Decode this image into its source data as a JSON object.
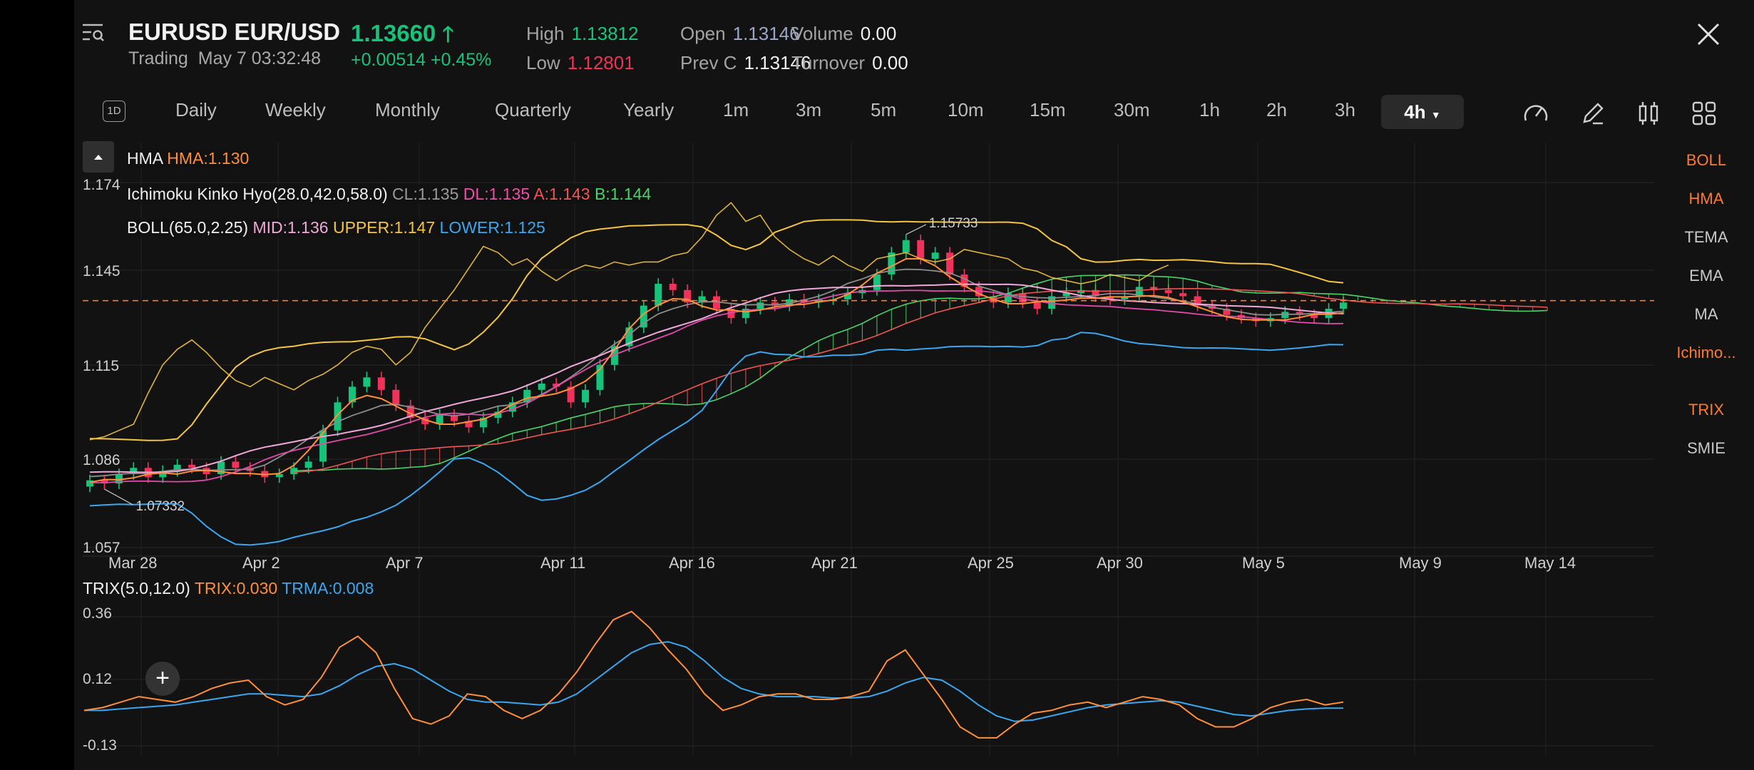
{
  "header": {
    "symbol": "EURUSD EUR/USD",
    "status": "Trading",
    "datetime": "May 7 03:32:48",
    "price": "1.13660",
    "change": "+0.00514",
    "change_pct": "+0.45%",
    "high_label": "High",
    "high_value": "1.13812",
    "low_label": "Low",
    "low_value": "1.12801",
    "open_label": "Open",
    "open_value": "1.13146",
    "prevc_label": "Prev C",
    "prevc_value": "1.13146",
    "volume_label": "Volume",
    "volume_value": "0.00",
    "turnover_label": "Turnover",
    "turnover_value": "0.00"
  },
  "toolbar": {
    "badge": "1D",
    "periods": [
      "Daily",
      "Weekly",
      "Monthly",
      "Quarterly",
      "Yearly",
      "1m",
      "3m",
      "5m",
      "10m",
      "15m",
      "30m",
      "1h",
      "2h",
      "3h"
    ],
    "active_period": "4h",
    "tools": [
      "speed-icon",
      "pencil-icon",
      "candle-icon",
      "grid-icon"
    ]
  },
  "indicators": {
    "hma_name": "HMA",
    "hma_value": "HMA:1.130",
    "ichimoku_name": "Ichimoku Kinko Hyo(28.0,42.0,58.0)",
    "ichimoku_cl": "CL:1.135",
    "ichimoku_dl": "DL:1.135",
    "ichimoku_a": "A:1.143",
    "ichimoku_b": "B:1.144",
    "boll_name": "BOLL(65.0,2.25)",
    "boll_mid": "MID:1.136",
    "boll_upper": "UPPER:1.147",
    "boll_lower": "LOWER:1.125",
    "trix_name": "TRIX(5.0,12.0)",
    "trix_value": "TRIX:0.030",
    "trma_value": "TRMA:0.008"
  },
  "right_menu": [
    {
      "label": "BOLL",
      "active": true
    },
    {
      "label": "HMA",
      "active": true
    },
    {
      "label": "TEMA",
      "active": false
    },
    {
      "label": "EMA",
      "active": false
    },
    {
      "label": "MA",
      "active": false
    },
    {
      "label": "Ichimo...",
      "active": true
    },
    {
      "label": "TRIX",
      "active": true
    },
    {
      "label": "SMIE",
      "active": false
    }
  ],
  "colors": {
    "up": "#17c37b",
    "down": "#f0325a",
    "accent": "#ff7a2f",
    "boll_upper": "#f4c542",
    "boll_mid": "#f0a8d8",
    "boll_lower": "#3aa7f0",
    "cloud_up": "#49d46a",
    "cloud_down": "#f05454",
    "trix": "#ff8f3a",
    "trma": "#3aa7f0"
  },
  "chart_data": [
    {
      "type": "candlestick",
      "title": "EURUSD 4h",
      "y_ticks": [
        "1.174",
        "1.145",
        "1.115",
        "1.086",
        "1.057"
      ],
      "x_ticks": [
        "Mar 28",
        "Apr 2",
        "Apr 7",
        "Apr 11",
        "Apr 16",
        "Apr 21",
        "Apr 25",
        "Apr 30",
        "May 5",
        "May 9",
        "May 14"
      ],
      "ylim": [
        1.057,
        1.174
      ],
      "annotations": [
        "1.15733",
        "1.07332"
      ],
      "last_price": 1.1366,
      "close_series": [
        1.079,
        1.078,
        1.081,
        1.083,
        1.08,
        1.082,
        1.084,
        1.083,
        1.081,
        1.085,
        1.083,
        1.082,
        1.08,
        1.081,
        1.083,
        1.085,
        1.095,
        1.104,
        1.109,
        1.112,
        1.108,
        1.103,
        1.099,
        1.097,
        1.1,
        1.098,
        1.096,
        1.099,
        1.101,
        1.104,
        1.108,
        1.11,
        1.109,
        1.104,
        1.108,
        1.116,
        1.122,
        1.128,
        1.135,
        1.142,
        1.14,
        1.136,
        1.138,
        1.134,
        1.131,
        1.134,
        1.136,
        1.135,
        1.137,
        1.136,
        1.137,
        1.137,
        1.139,
        1.14,
        1.145,
        1.152,
        1.156,
        1.15,
        1.152,
        1.145,
        1.141,
        1.138,
        1.136,
        1.139,
        1.136,
        1.134,
        1.138,
        1.139,
        1.14,
        1.138,
        1.137,
        1.138,
        1.141,
        1.14,
        1.139,
        1.138,
        1.135,
        1.134,
        1.132,
        1.131,
        1.13,
        1.131,
        1.133,
        1.132,
        1.131,
        1.134,
        1.136
      ]
    },
    {
      "type": "line",
      "title": "TRIX(5.0,12.0)",
      "y_ticks": [
        "0.36",
        "0.12",
        "-0.13"
      ],
      "ylim": [
        -0.16,
        0.38
      ],
      "series": [
        {
          "name": "TRIX",
          "values": [
            0.0,
            0.01,
            0.03,
            0.05,
            0.04,
            0.03,
            0.05,
            0.08,
            0.1,
            0.11,
            0.05,
            0.02,
            0.04,
            0.12,
            0.23,
            0.27,
            0.21,
            0.08,
            -0.03,
            -0.05,
            -0.02,
            0.06,
            0.05,
            0.0,
            -0.03,
            0.0,
            0.06,
            0.14,
            0.24,
            0.33,
            0.36,
            0.3,
            0.22,
            0.15,
            0.06,
            0.0,
            0.02,
            0.05,
            0.06,
            0.06,
            0.04,
            0.04,
            0.05,
            0.07,
            0.18,
            0.22,
            0.13,
            0.04,
            -0.06,
            -0.1,
            -0.1,
            -0.05,
            -0.01,
            0.0,
            0.02,
            0.03,
            0.01,
            0.03,
            0.05,
            0.04,
            0.02,
            -0.03,
            -0.06,
            -0.06,
            -0.03,
            0.01,
            0.03,
            0.04,
            0.02,
            0.03
          ]
        },
        {
          "name": "TRMA",
          "values": [
            0.0,
            0.0,
            0.005,
            0.01,
            0.015,
            0.02,
            0.03,
            0.04,
            0.05,
            0.06,
            0.06,
            0.055,
            0.05,
            0.06,
            0.09,
            0.13,
            0.16,
            0.17,
            0.15,
            0.11,
            0.07,
            0.04,
            0.03,
            0.03,
            0.025,
            0.02,
            0.03,
            0.06,
            0.11,
            0.16,
            0.21,
            0.24,
            0.25,
            0.23,
            0.18,
            0.12,
            0.08,
            0.06,
            0.05,
            0.05,
            0.05,
            0.045,
            0.045,
            0.05,
            0.07,
            0.1,
            0.12,
            0.11,
            0.07,
            0.02,
            -0.02,
            -0.04,
            -0.035,
            -0.02,
            -0.005,
            0.01,
            0.02,
            0.025,
            0.03,
            0.035,
            0.03,
            0.015,
            0.0,
            -0.015,
            -0.02,
            -0.01,
            0.0,
            0.005,
            0.008,
            0.008
          ]
        }
      ]
    }
  ]
}
